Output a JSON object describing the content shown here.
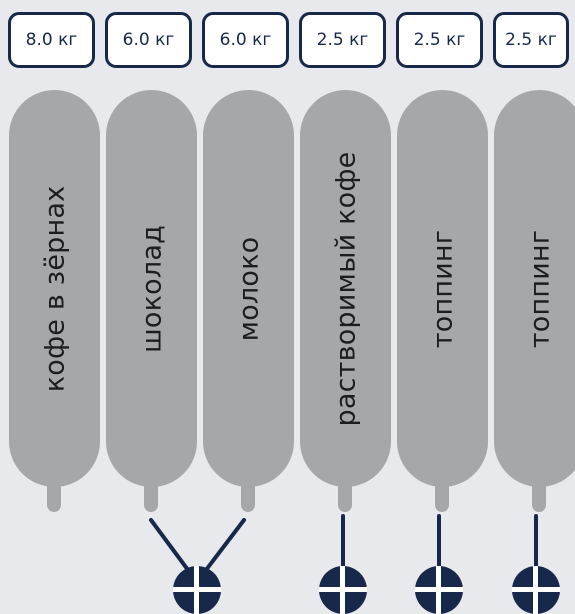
{
  "canisters": [
    {
      "weight": "8.0 кг",
      "name": "кофе в зёрнах"
    },
    {
      "weight": "6.0 кг",
      "name": "шоколад"
    },
    {
      "weight": "6.0 кг",
      "name": "молоко"
    },
    {
      "weight": "2.5 кг",
      "name": "растворимый кофе"
    },
    {
      "weight": "2.5 кг",
      "name": "топпинг"
    },
    {
      "weight": "2.5 кг",
      "name": "топпинг"
    }
  ],
  "colors": {
    "background": "#e8e9ec",
    "canister": "#a6a7ab",
    "accent": "#17284a",
    "badge_fill": "#ffffff"
  },
  "icons": {
    "mixer": "mixer-crosshair-icon"
  }
}
